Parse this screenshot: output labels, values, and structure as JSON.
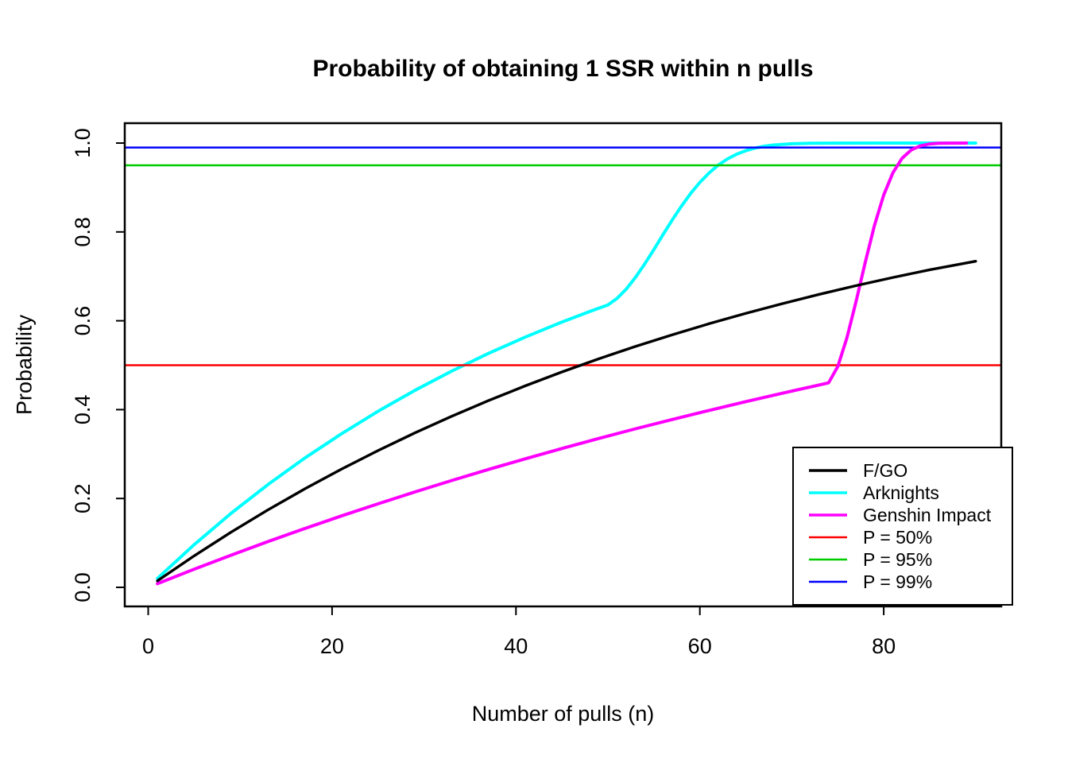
{
  "chart_data": {
    "type": "line",
    "title": "Probability of obtaining 1 SSR within n pulls",
    "xlabel": "Number of pulls (n)",
    "ylabel": "Probability",
    "xlim": [
      0,
      90
    ],
    "ylim": [
      0.0,
      1.0
    ],
    "grid": false,
    "background": "#ffffff",
    "axis_color": "#000000",
    "x_tick_values": [
      0,
      20,
      40,
      60,
      80
    ],
    "x_tick_labels": [
      "0",
      "20",
      "40",
      "60",
      "80"
    ],
    "y_tick_values": [
      0.0,
      0.2,
      0.4,
      0.6,
      0.8,
      1.0
    ],
    "y_tick_labels": [
      "0.0",
      "0.2",
      "0.4",
      "0.6",
      "0.8",
      "1.0"
    ],
    "legend_position": "bottom-right",
    "series": [
      {
        "name": "F/GO",
        "color": "#000000",
        "x": [
          1,
          5,
          9,
          13,
          17,
          21,
          25,
          29,
          33,
          37,
          41,
          45,
          49,
          53,
          57,
          61,
          65,
          69,
          73,
          77,
          81,
          85,
          90
        ],
        "y": [
          0.0146,
          0.0709,
          0.1239,
          0.174,
          0.2213,
          0.2659,
          0.3079,
          0.3476,
          0.385,
          0.4202,
          0.4535,
          0.4848,
          0.5144,
          0.5423,
          0.5686,
          0.5933,
          0.6167,
          0.6387,
          0.6595,
          0.6791,
          0.6975,
          0.7149,
          0.7339
        ]
      },
      {
        "name": "Arknights",
        "color": "#00FFFF",
        "x": [
          1,
          5,
          9,
          13,
          17,
          21,
          25,
          29,
          33,
          37,
          41,
          45,
          48,
          50,
          51,
          52,
          53,
          54,
          55,
          56,
          57,
          58,
          59,
          60,
          61,
          62,
          63,
          64,
          65,
          66,
          67,
          68,
          70,
          72,
          75,
          80,
          85,
          90
        ],
        "y": [
          0.02,
          0.0961,
          0.1663,
          0.231,
          0.2906,
          0.3455,
          0.3965,
          0.4433,
          0.4865,
          0.5264,
          0.5631,
          0.5971,
          0.6207,
          0.6358,
          0.6504,
          0.6713,
          0.6976,
          0.7279,
          0.7605,
          0.7941,
          0.827,
          0.8581,
          0.8865,
          0.9115,
          0.9327,
          0.9502,
          0.9642,
          0.9749,
          0.9829,
          0.9887,
          0.9928,
          0.9955,
          0.9984,
          0.9995,
          0.9999,
          1.0,
          1.0,
          1.0
        ]
      },
      {
        "name": "Genshin Impact",
        "color": "#FF00FF",
        "x": [
          1,
          5,
          9,
          13,
          17,
          21,
          25,
          29,
          33,
          37,
          41,
          45,
          49,
          53,
          57,
          61,
          65,
          69,
          72,
          74,
          75,
          76,
          77,
          78,
          79,
          80,
          81,
          82,
          83,
          84,
          85,
          86,
          87,
          89
        ],
        "y": [
          0.0083,
          0.0408,
          0.0723,
          0.1028,
          0.1322,
          0.1606,
          0.1881,
          0.2147,
          0.2404,
          0.2653,
          0.2893,
          0.3126,
          0.3351,
          0.3569,
          0.3779,
          0.3983,
          0.418,
          0.437,
          0.451,
          0.4603,
          0.4972,
          0.5617,
          0.6442,
          0.7326,
          0.815,
          0.8831,
          0.9332,
          0.9658,
          0.9846,
          0.994,
          0.998,
          0.9995,
          0.9999,
          1.0
        ]
      }
    ],
    "hlines": [
      {
        "label": "P = 50%",
        "value": 0.5,
        "color": "#FF0000"
      },
      {
        "label": "P = 95%",
        "value": 0.95,
        "color": "#00CD00"
      },
      {
        "label": "P = 99%",
        "value": 0.99,
        "color": "#0000FF"
      }
    ],
    "legend_entries": [
      {
        "label": "F/GO",
        "color": "#000000"
      },
      {
        "label": "Arknights",
        "color": "#00FFFF"
      },
      {
        "label": "Genshin Impact",
        "color": "#FF00FF"
      },
      {
        "label": "P = 50%",
        "color": "#FF0000"
      },
      {
        "label": "P = 95%",
        "color": "#00CD00"
      },
      {
        "label": "P = 99%",
        "color": "#0000FF"
      }
    ]
  }
}
